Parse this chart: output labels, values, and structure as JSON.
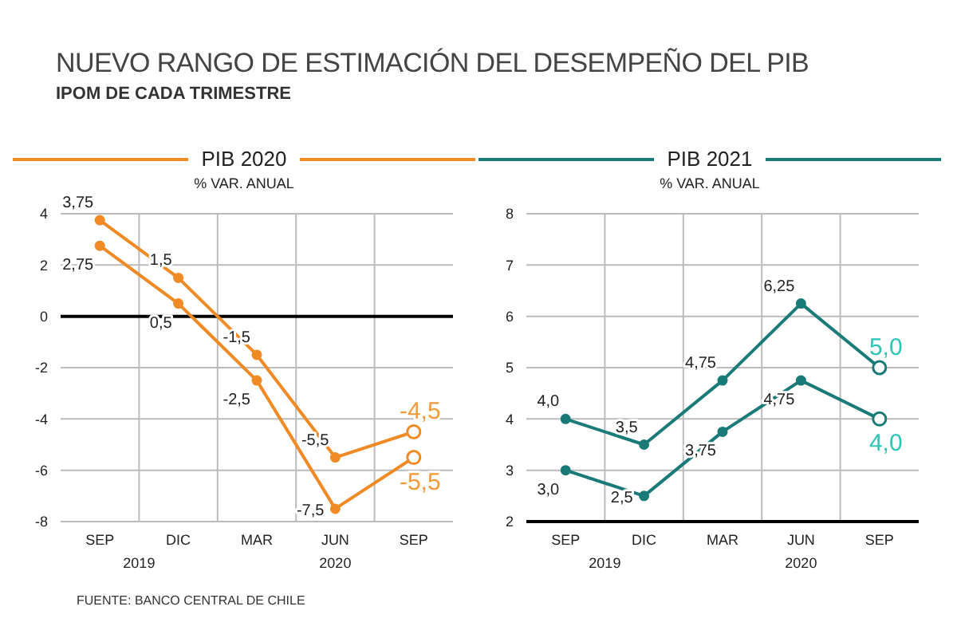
{
  "chart_data": [
    {
      "type": "other",
      "title": "NUEVO RANGO DE ESTIMACIÓN DEL DESEMPEÑO DEL PIB",
      "subtitle": "IPOM DE CADA TRIMESTRE",
      "annotations": [
        "FUENTE: BANCO CENTRAL DE CHILE"
      ]
    },
    {
      "type": "line",
      "title": "PIB 2020",
      "subtitle": "% VAR. ANUAL",
      "categories": [
        "SEP",
        "DIC",
        "MAR",
        "JUN",
        "SEP"
      ],
      "series": [
        {
          "color": "#f08a24",
          "values": [
            3.75,
            1.5,
            -1.5,
            -5.5,
            -4.5
          ],
          "value_labels": [
            "3,75",
            "1,5",
            "-1,5",
            "-5,5",
            "-4,5"
          ]
        },
        {
          "color": "#f08a24",
          "values": [
            2.75,
            0.5,
            -2.5,
            -7.5,
            -5.5
          ],
          "value_labels": [
            "2,75",
            "0,5",
            "-2,5",
            "-7,5",
            "-5,5"
          ]
        }
      ],
      "ylim": [
        -8,
        4
      ],
      "yticks": [
        -8,
        -6,
        -4,
        -2,
        0,
        2,
        4
      ],
      "grid": true,
      "marker": "circle",
      "ref_lines": [
        {
          "axis": "y",
          "value": 0,
          "color": "#000000"
        }
      ],
      "annotations": [
        "2019",
        "2020"
      ]
    },
    {
      "type": "line",
      "title": "PIB 2021",
      "subtitle": "% VAR. ANUAL",
      "categories": [
        "SEP",
        "DIC",
        "MAR",
        "JUN",
        "SEP"
      ],
      "series": [
        {
          "color": "#1a7a78",
          "values": [
            4.0,
            3.5,
            4.75,
            6.25,
            5.0
          ],
          "value_labels": [
            "4,0",
            "3,5",
            "4,75",
            "6,25",
            "5,0"
          ]
        },
        {
          "color": "#1a7a78",
          "values": [
            3.0,
            2.5,
            3.75,
            4.75,
            4.0
          ],
          "value_labels": [
            "3,0",
            "2,5",
            "3,75",
            "4,75",
            "4,0"
          ]
        }
      ],
      "ylim": [
        2,
        8
      ],
      "yticks": [
        2,
        3,
        4,
        5,
        6,
        7,
        8
      ],
      "grid": true,
      "marker": "circle",
      "annotations": [
        "2019",
        "2020"
      ]
    }
  ]
}
